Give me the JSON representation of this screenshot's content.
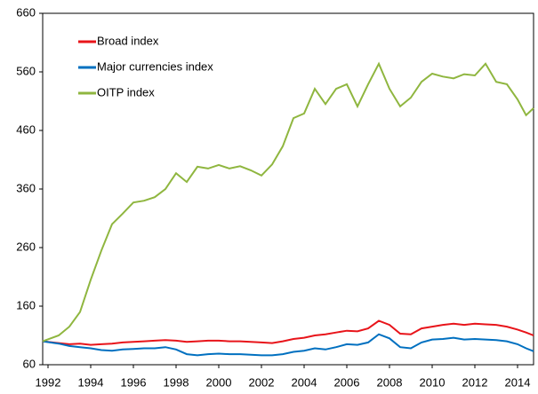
{
  "chart_data": {
    "type": "line",
    "x": [
      1991.75,
      1992.5,
      1993,
      1993.5,
      1994,
      1994.5,
      1995,
      1995.5,
      1996,
      1996.5,
      1997,
      1997.5,
      1998,
      1998.5,
      1999,
      1999.5,
      2000,
      2000.5,
      2001,
      2001.5,
      2002,
      2002.5,
      2003,
      2003.5,
      2004,
      2004.5,
      2005,
      2005.5,
      2006,
      2006.5,
      2007,
      2007.5,
      2008,
      2008.5,
      2009,
      2009.5,
      2010,
      2010.5,
      2011,
      2011.5,
      2012,
      2012.5,
      2013,
      2013.5,
      2014,
      2014.4,
      2014.75
    ],
    "series": [
      {
        "name": "Broad index",
        "color": "#e8141a",
        "values": [
          100,
          97,
          95,
          96,
          94,
          95,
          96,
          98,
          99,
          100,
          101,
          102,
          101,
          99,
          100,
          101,
          101,
          100,
          100,
          99,
          98,
          97,
          100,
          104,
          106,
          110,
          112,
          115,
          118,
          117,
          122,
          135,
          128,
          113,
          112,
          122,
          125,
          128,
          130,
          128,
          130,
          129,
          128,
          125,
          120,
          115,
          110
        ]
      },
      {
        "name": "Major currencies index",
        "color": "#0070c0",
        "values": [
          100,
          96,
          92,
          90,
          88,
          85,
          84,
          86,
          87,
          88,
          88,
          90,
          86,
          78,
          76,
          78,
          79,
          78,
          78,
          77,
          76,
          76,
          78,
          82,
          84,
          88,
          86,
          90,
          95,
          94,
          98,
          112,
          105,
          90,
          88,
          98,
          103,
          104,
          106,
          103,
          104,
          103,
          102,
          100,
          95,
          88,
          83
        ]
      },
      {
        "name": "OITP index",
        "color": "#8fb63f",
        "values": [
          100,
          110,
          125,
          150,
          205,
          255,
          300,
          318,
          337,
          340,
          346,
          360,
          387,
          372,
          398,
          395,
          401,
          395,
          399,
          392,
          383,
          402,
          433,
          481,
          489,
          531,
          505,
          531,
          539,
          501,
          539,
          574,
          531,
          501,
          516,
          543,
          557,
          552,
          549,
          556,
          554,
          574,
          543,
          539,
          513,
          486,
          498
        ]
      }
    ],
    "xlim": [
      1991.75,
      2014.75
    ],
    "xticks": [
      1992,
      1994,
      1996,
      1998,
      2000,
      2002,
      2004,
      2006,
      2008,
      2010,
      2012,
      2014
    ],
    "ylim": [
      60,
      660
    ],
    "yticks": [
      60,
      160,
      260,
      360,
      460,
      560,
      660
    ]
  }
}
